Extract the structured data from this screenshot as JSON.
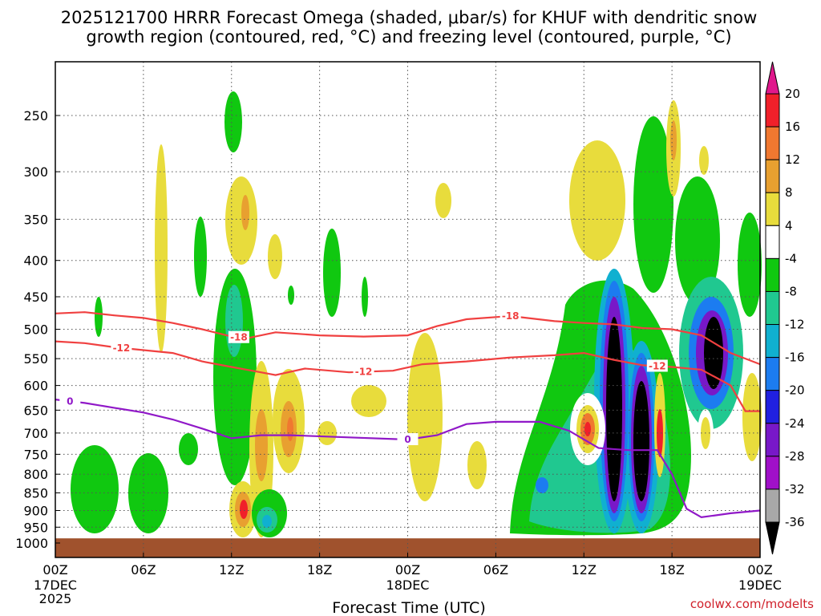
{
  "chart_data": {
    "type": "heatmap",
    "title_lines": [
      "2025121700 HRRR Forecast Omega (shaded, μbar/s) for KHUF with dendritic snow",
      "growth region (contoured, red, °C) and freezing level (contoured, purple, °C)"
    ],
    "xlabel": "Forecast Time (UTC)",
    "ylabel": "",
    "credit": "coolwx.com/modelts",
    "x_forecast_hours_range": [
      0,
      48
    ],
    "x_ticks": [
      {
        "hour": 0,
        "label": "00Z",
        "sub": [
          "17DEC",
          "2025"
        ]
      },
      {
        "hour": 6,
        "label": "06Z",
        "sub": []
      },
      {
        "hour": 12,
        "label": "12Z",
        "sub": []
      },
      {
        "hour": 18,
        "label": "18Z",
        "sub": []
      },
      {
        "hour": 24,
        "label": "00Z",
        "sub": [
          "18DEC"
        ]
      },
      {
        "hour": 30,
        "label": "06Z",
        "sub": []
      },
      {
        "hour": 36,
        "label": "12Z",
        "sub": []
      },
      {
        "hour": 42,
        "label": "18Z",
        "sub": []
      },
      {
        "hour": 48,
        "label": "00Z",
        "sub": [
          "19DEC"
        ]
      }
    ],
    "y_pressure_levels_hPa": [
      250,
      300,
      350,
      400,
      450,
      500,
      550,
      600,
      650,
      700,
      750,
      800,
      850,
      900,
      950,
      1000
    ],
    "y_range_hPa": [
      200,
      1010
    ],
    "ground_pressure_hPa": 985,
    "colorbar": {
      "labels": [
        "20",
        "16",
        "12",
        "8",
        "4",
        "-4",
        "-8",
        "-12",
        "-16",
        "-20",
        "-24",
        "-28",
        "-32",
        "-36"
      ],
      "segments": [
        {
          "from": 20,
          "to": 16,
          "color": "#f0202a"
        },
        {
          "from": 16,
          "to": 12,
          "color": "#f07830"
        },
        {
          "from": 12,
          "to": 8,
          "color": "#e8a030"
        },
        {
          "from": 8,
          "to": 4,
          "color": "#e8dc3c"
        },
        {
          "from": 4,
          "to": -4,
          "color": "#ffffff"
        },
        {
          "from": -4,
          "to": -8,
          "color": "#10c810"
        },
        {
          "from": -8,
          "to": -12,
          "color": "#20c890"
        },
        {
          "from": -12,
          "to": -16,
          "color": "#10b0d0"
        },
        {
          "from": -16,
          "to": -20,
          "color": "#1c7cf0"
        },
        {
          "from": -20,
          "to": -24,
          "color": "#2020e0"
        },
        {
          "from": -24,
          "to": -28,
          "color": "#7818c8"
        },
        {
          "from": -28,
          "to": -32,
          "color": "#a010c8"
        },
        {
          "from": -32,
          "to": -36,
          "color": "#a8a8a8"
        }
      ],
      "top_color": "#e0188c",
      "bottom_color": "#000000"
    },
    "contours": [
      {
        "name": "dgz -18C",
        "value": -18,
        "label": "-18",
        "color": "#f04040",
        "label_hours": [
          12.5,
          31
        ],
        "points": [
          [
            0,
            475
          ],
          [
            2,
            473
          ],
          [
            4,
            478
          ],
          [
            6,
            482
          ],
          [
            8,
            490
          ],
          [
            10,
            500
          ],
          [
            12,
            512
          ],
          [
            13,
            515
          ],
          [
            15,
            505
          ],
          [
            18,
            510
          ],
          [
            21,
            512
          ],
          [
            24,
            510
          ],
          [
            26,
            495
          ],
          [
            28,
            484
          ],
          [
            31,
            479
          ],
          [
            34,
            487
          ],
          [
            36,
            490
          ],
          [
            38,
            492
          ],
          [
            40,
            498
          ],
          [
            42,
            500
          ],
          [
            44,
            510
          ],
          [
            46,
            540
          ],
          [
            48,
            560
          ]
        ]
      },
      {
        "name": "dgz -12C",
        "value": -12,
        "label": "-12",
        "color": "#f04040",
        "label_hours": [
          4.5,
          21,
          41
        ],
        "points": [
          [
            0,
            520
          ],
          [
            2,
            523
          ],
          [
            4,
            530
          ],
          [
            6,
            535
          ],
          [
            8,
            540
          ],
          [
            10,
            555
          ],
          [
            12,
            565
          ],
          [
            14,
            575
          ],
          [
            15,
            580
          ],
          [
            17,
            568
          ],
          [
            20,
            575
          ],
          [
            23,
            572
          ],
          [
            25,
            560
          ],
          [
            28,
            555
          ],
          [
            31,
            548
          ],
          [
            34,
            544
          ],
          [
            36,
            540
          ],
          [
            38,
            552
          ],
          [
            40,
            562
          ],
          [
            42,
            565
          ],
          [
            44,
            570
          ],
          [
            46,
            600
          ],
          [
            47,
            652
          ],
          [
            48,
            652
          ]
        ]
      },
      {
        "name": "freezing level 0C",
        "value": 0,
        "label": "0",
        "color": "#9018c8",
        "label_hours": [
          1,
          24
        ],
        "points": [
          [
            0,
            628
          ],
          [
            2,
            635
          ],
          [
            4,
            645
          ],
          [
            6,
            655
          ],
          [
            8,
            670
          ],
          [
            10,
            690
          ],
          [
            12,
            712
          ],
          [
            14,
            705
          ],
          [
            16,
            705
          ],
          [
            20,
            710
          ],
          [
            24,
            715
          ],
          [
            26,
            705
          ],
          [
            28,
            680
          ],
          [
            30,
            675
          ],
          [
            33,
            675
          ],
          [
            35,
            695
          ],
          [
            37,
            735
          ],
          [
            39,
            740
          ],
          [
            41,
            740
          ],
          [
            42,
            800
          ],
          [
            43,
            895
          ],
          [
            44,
            920
          ],
          [
            46,
            908
          ],
          [
            48,
            900
          ]
        ]
      }
    ]
  }
}
